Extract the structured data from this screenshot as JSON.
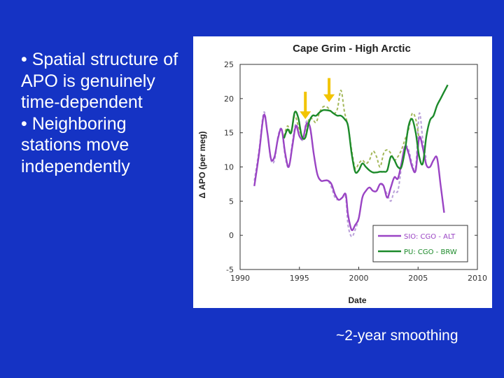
{
  "slide": {
    "bullets": [
      "• Spatial structure of APO is genuinely time-dependent",
      "• Neighboring stations move independently"
    ],
    "caption": "~2-year smoothing"
  },
  "colors": {
    "background": "#1533c4",
    "series_purple": "#9a44c4",
    "series_purple_dashed": "#b9a0d9",
    "series_green": "#1c8a2a",
    "series_green_dashed": "#a4b85a",
    "arrow": "#f2c400"
  },
  "chart_data": {
    "type": "line",
    "title": "Cape Grim - High Arctic",
    "xlabel": "Date",
    "ylabel": "Δ APO (per meg)",
    "xlim": [
      1990,
      2010
    ],
    "ylim": [
      -5,
      25
    ],
    "xticks": [
      "1990",
      "1995",
      "2000",
      "2005",
      "2010"
    ],
    "yticks": [
      "25",
      "20",
      "15",
      "10",
      "5",
      "0",
      "-5"
    ],
    "grid": false,
    "legend_position": "bottom-right",
    "annotations": [
      {
        "type": "arrow-down",
        "x": 1995.5,
        "y_top": 21,
        "y_tip": 17
      },
      {
        "type": "arrow-down",
        "x": 1997.5,
        "y_top": 23,
        "y_tip": 19.5
      }
    ],
    "series": [
      {
        "name": "SIO: CGO - ALT",
        "style": "solid",
        "points": [
          [
            1991.2,
            7.2
          ],
          [
            1991.6,
            12
          ],
          [
            1992.0,
            17.6
          ],
          [
            1992.3,
            15
          ],
          [
            1992.6,
            11.2
          ],
          [
            1992.9,
            11.5
          ],
          [
            1993.2,
            14.2
          ],
          [
            1993.5,
            15.5
          ],
          [
            1993.8,
            12
          ],
          [
            1994.1,
            10
          ],
          [
            1994.4,
            13
          ],
          [
            1994.7,
            16
          ],
          [
            1995.0,
            14.5
          ],
          [
            1995.3,
            14.2
          ],
          [
            1995.6,
            16.3
          ],
          [
            1995.9,
            15.8
          ],
          [
            1996.2,
            12
          ],
          [
            1996.5,
            9
          ],
          [
            1996.8,
            8
          ],
          [
            1997.1,
            8
          ],
          [
            1997.4,
            8
          ],
          [
            1997.7,
            7.5
          ],
          [
            1998.0,
            6
          ],
          [
            1998.3,
            5.2
          ],
          [
            1998.6,
            5.5
          ],
          [
            1998.9,
            6
          ],
          [
            1999.1,
            3
          ],
          [
            1999.4,
            0.8
          ],
          [
            1999.7,
            1.5
          ],
          [
            2000.0,
            2.5
          ],
          [
            2000.3,
            5.5
          ],
          [
            2000.6,
            6.5
          ],
          [
            2000.9,
            7
          ],
          [
            2001.2,
            6.5
          ],
          [
            2001.5,
            6.5
          ],
          [
            2001.8,
            7.5
          ],
          [
            2002.1,
            7.2
          ],
          [
            2002.4,
            5.5
          ],
          [
            2002.7,
            7
          ],
          [
            2003.0,
            8.5
          ],
          [
            2003.3,
            8.3
          ],
          [
            2003.6,
            10.5
          ],
          [
            2003.9,
            13
          ],
          [
            2004.2,
            12
          ],
          [
            2004.5,
            10
          ],
          [
            2004.8,
            9.5
          ],
          [
            2005.1,
            14.3
          ],
          [
            2005.4,
            12.8
          ],
          [
            2005.7,
            10.3
          ],
          [
            2006.0,
            10
          ],
          [
            2006.3,
            11
          ],
          [
            2006.6,
            11.3
          ],
          [
            2006.9,
            7.3
          ],
          [
            2007.2,
            3.3
          ]
        ]
      },
      {
        "name": "SIO: CGO - ALT (raw)",
        "style": "dashed",
        "in_legend": false,
        "points": [
          [
            1991.2,
            8
          ],
          [
            1991.6,
            12.5
          ],
          [
            1992.0,
            18
          ],
          [
            1992.3,
            15
          ],
          [
            1992.6,
            11
          ],
          [
            1992.9,
            11
          ],
          [
            1993.2,
            14.5
          ],
          [
            1993.5,
            15.5
          ],
          [
            1993.8,
            11.5
          ],
          [
            1994.1,
            10
          ],
          [
            1994.4,
            13.5
          ],
          [
            1994.7,
            16.3
          ],
          [
            1995.0,
            14.6
          ],
          [
            1995.3,
            14
          ],
          [
            1995.6,
            16.7
          ],
          [
            1995.9,
            15.5
          ],
          [
            1996.2,
            12
          ],
          [
            1996.5,
            9
          ],
          [
            1996.8,
            8
          ],
          [
            1997.1,
            8
          ],
          [
            1997.4,
            8
          ],
          [
            1997.7,
            7
          ],
          [
            1998.0,
            5.5
          ],
          [
            1998.3,
            5.2
          ],
          [
            1998.6,
            5.5
          ],
          [
            1998.9,
            5.5
          ],
          [
            1999.1,
            1.5
          ],
          [
            1999.4,
            -0.2
          ],
          [
            1999.7,
            0.8
          ],
          [
            2000.0,
            2.5
          ],
          [
            2000.3,
            5.5
          ],
          [
            2000.6,
            6.5
          ],
          [
            2000.9,
            7
          ],
          [
            2001.2,
            6.5
          ],
          [
            2001.5,
            6.5
          ],
          [
            2001.8,
            7.5
          ],
          [
            2002.1,
            7
          ],
          [
            2002.4,
            6
          ],
          [
            2002.7,
            5
          ],
          [
            2003.0,
            6.5
          ],
          [
            2003.3,
            6.5
          ],
          [
            2003.6,
            10
          ],
          [
            2003.9,
            13
          ],
          [
            2004.2,
            12.5
          ],
          [
            2004.5,
            10.5
          ],
          [
            2004.8,
            10
          ],
          [
            2005.1,
            17.8
          ],
          [
            2005.4,
            14
          ],
          [
            2005.7,
            11
          ]
        ]
      },
      {
        "name": "PU: CGO - BRW",
        "style": "solid",
        "points": [
          [
            1993.7,
            14.2
          ],
          [
            1994.0,
            15.5
          ],
          [
            1994.3,
            15
          ],
          [
            1994.6,
            18
          ],
          [
            1994.9,
            17.2
          ],
          [
            1995.2,
            14.5
          ],
          [
            1995.5,
            14.3
          ],
          [
            1995.8,
            16.5
          ],
          [
            1996.1,
            17.5
          ],
          [
            1996.4,
            17.5
          ],
          [
            1996.7,
            18
          ],
          [
            1997.0,
            18.3
          ],
          [
            1997.3,
            18.3
          ],
          [
            1997.6,
            18.2
          ],
          [
            1997.9,
            17.8
          ],
          [
            1998.2,
            17.5
          ],
          [
            1998.5,
            17.5
          ],
          [
            1998.8,
            17
          ],
          [
            1999.1,
            16
          ],
          [
            1999.4,
            12
          ],
          [
            1999.7,
            9.3
          ],
          [
            2000.0,
            9.5
          ],
          [
            2000.3,
            10.5
          ],
          [
            2000.6,
            10
          ],
          [
            2000.9,
            9.5
          ],
          [
            2001.2,
            9.2
          ],
          [
            2001.5,
            9.2
          ],
          [
            2001.8,
            9.3
          ],
          [
            2002.1,
            9.3
          ],
          [
            2002.4,
            9.5
          ],
          [
            2002.7,
            11.5
          ],
          [
            2003.0,
            11
          ],
          [
            2003.3,
            10
          ],
          [
            2003.6,
            10
          ],
          [
            2003.9,
            12.5
          ],
          [
            2004.2,
            16
          ],
          [
            2004.5,
            17
          ],
          [
            2004.8,
            15
          ],
          [
            2005.1,
            11.5
          ],
          [
            2005.4,
            10.5
          ],
          [
            2005.7,
            14.5
          ],
          [
            2006.0,
            16.8
          ],
          [
            2006.3,
            17.5
          ],
          [
            2006.6,
            19
          ],
          [
            2006.9,
            20
          ],
          [
            2007.2,
            21
          ],
          [
            2007.5,
            22
          ]
        ]
      },
      {
        "name": "PU: CGO - BRW (raw)",
        "style": "dashed",
        "in_legend": false,
        "points": [
          [
            1993.7,
            14.5
          ],
          [
            1994.0,
            16
          ],
          [
            1994.3,
            15
          ],
          [
            1994.6,
            17.5
          ],
          [
            1994.9,
            16
          ],
          [
            1995.2,
            14.5
          ],
          [
            1995.5,
            14.5
          ],
          [
            1995.8,
            17
          ],
          [
            1996.1,
            17
          ],
          [
            1996.4,
            16.5
          ],
          [
            1996.7,
            18
          ],
          [
            1997.0,
            18.8
          ],
          [
            1997.3,
            18.8
          ],
          [
            1997.6,
            18.3
          ],
          [
            1997.9,
            17.8
          ],
          [
            1998.2,
            18.5
          ],
          [
            1998.5,
            21.2
          ],
          [
            1998.8,
            18
          ],
          [
            1999.1,
            16
          ],
          [
            1999.4,
            12.5
          ],
          [
            1999.7,
            9.8
          ],
          [
            2000.0,
            10.5
          ],
          [
            2000.3,
            11
          ],
          [
            2000.6,
            10.5
          ],
          [
            2000.9,
            11
          ],
          [
            2001.2,
            12.3
          ],
          [
            2001.5,
            11.5
          ],
          [
            2001.8,
            10
          ],
          [
            2002.1,
            12
          ],
          [
            2002.4,
            12.5
          ],
          [
            2002.7,
            12
          ],
          [
            2003.0,
            11
          ],
          [
            2003.3,
            11.5
          ],
          [
            2003.6,
            12.5
          ],
          [
            2003.9,
            14
          ],
          [
            2004.2,
            15.5
          ],
          [
            2004.5,
            17.8
          ],
          [
            2004.8,
            17
          ],
          [
            2005.1,
            14
          ]
        ]
      }
    ]
  }
}
